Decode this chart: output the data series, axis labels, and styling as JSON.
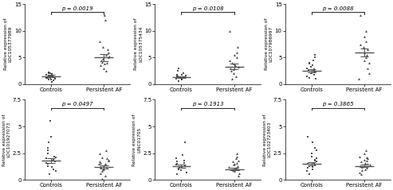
{
  "panels": [
    {
      "ylabel": "Relative expression of\nLOC105377989",
      "pvalue": "p = 0.0019",
      "ylim": [
        0,
        15
      ],
      "yticks": [
        0,
        5,
        10,
        15
      ],
      "controls_mean": 1.5,
      "controls_sem": 0.25,
      "af_mean": 5.0,
      "af_sem": 0.65,
      "controls_dots": [
        0.5,
        0.7,
        0.8,
        0.9,
        1.0,
        1.0,
        1.1,
        1.1,
        1.2,
        1.2,
        1.3,
        1.4,
        1.5,
        1.5,
        1.6,
        1.7,
        1.8,
        1.9,
        2.0,
        2.1,
        2.2
      ],
      "af_dots": [
        2.5,
        3.0,
        3.5,
        3.8,
        4.0,
        4.2,
        4.5,
        4.8,
        5.0,
        5.2,
        5.5,
        6.0,
        6.5,
        7.0,
        8.0,
        12.0,
        13.0
      ]
    },
    {
      "ylabel": "Relative expression of\nLOC105375434",
      "pvalue": "p = 0.0108",
      "ylim": [
        0,
        15
      ],
      "yticks": [
        0,
        5,
        10,
        15
      ],
      "controls_mean": 1.3,
      "controls_sem": 0.2,
      "af_mean": 3.3,
      "af_sem": 0.55,
      "controls_dots": [
        0.6,
        0.8,
        0.9,
        1.0,
        1.1,
        1.2,
        1.3,
        1.4,
        1.5,
        1.6,
        1.7,
        1.8,
        2.0,
        2.5,
        3.0
      ],
      "af_dots": [
        1.0,
        1.5,
        2.0,
        2.5,
        2.8,
        3.0,
        3.2,
        3.5,
        3.8,
        4.0,
        4.5,
        5.0,
        5.5,
        6.0,
        7.0,
        10.0
      ]
    },
    {
      "ylabel": "Relative expression of\nLOC107986997",
      "pvalue": "p = 0.0088",
      "ylim": [
        0,
        15
      ],
      "yticks": [
        0,
        5,
        10,
        15
      ],
      "controls_mean": 2.5,
      "controls_sem": 0.35,
      "af_mean": 6.0,
      "af_sem": 0.75,
      "controls_dots": [
        1.0,
        1.2,
        1.5,
        1.8,
        2.0,
        2.0,
        2.2,
        2.3,
        2.5,
        2.5,
        2.7,
        2.8,
        3.0,
        3.2,
        3.5,
        3.8,
        4.0,
        4.5,
        5.0,
        5.5
      ],
      "af_dots": [
        1.0,
        2.0,
        3.0,
        4.0,
        4.5,
        5.0,
        5.5,
        6.0,
        6.5,
        7.0,
        7.5,
        8.0,
        9.0,
        10.0,
        13.0
      ]
    },
    {
      "ylabel": "Relative expression of\nLOC101927073",
      "pvalue": "p = 0.0497",
      "ylim": [
        0,
        7.5
      ],
      "yticks": [
        0,
        2.5,
        5.0,
        7.5
      ],
      "controls_mean": 1.8,
      "controls_sem": 0.22,
      "af_mean": 1.2,
      "af_sem": 0.12,
      "controls_dots": [
        0.5,
        0.8,
        1.0,
        1.2,
        1.3,
        1.5,
        1.6,
        1.7,
        1.8,
        1.9,
        2.0,
        2.1,
        2.2,
        2.5,
        2.8,
        3.0,
        3.5,
        4.0,
        5.5
      ],
      "af_dots": [
        0.05,
        0.4,
        0.6,
        0.8,
        1.0,
        1.0,
        1.1,
        1.2,
        1.3,
        1.4,
        1.5,
        1.5,
        1.6,
        1.7,
        1.8,
        1.9,
        2.0,
        2.1,
        2.5,
        2.8
      ]
    },
    {
      "ylabel": "Relative expression of\nLINC01705",
      "pvalue": "p = 0.1913",
      "ylim": [
        0,
        7.5
      ],
      "yticks": [
        0,
        2.5,
        5.0,
        7.5
      ],
      "controls_mean": 1.3,
      "controls_sem": 0.15,
      "af_mean": 1.0,
      "af_sem": 0.1,
      "controls_dots": [
        0.5,
        0.7,
        0.9,
        1.0,
        1.1,
        1.2,
        1.3,
        1.4,
        1.5,
        1.6,
        1.7,
        1.8,
        2.0,
        2.3,
        3.5
      ],
      "af_dots": [
        0.4,
        0.6,
        0.8,
        0.9,
        1.0,
        1.0,
        1.1,
        1.2,
        1.3,
        1.4,
        1.5,
        1.6,
        1.7,
        1.8,
        2.0,
        2.2,
        2.5
      ]
    },
    {
      "ylabel": "Relative expression of\nLOC102723403",
      "pvalue": "p = 0.3865",
      "ylim": [
        0,
        7.5
      ],
      "yticks": [
        0,
        2.5,
        5.0,
        7.5
      ],
      "controls_mean": 1.5,
      "controls_sem": 0.15,
      "af_mean": 1.3,
      "af_sem": 0.1,
      "controls_dots": [
        0.5,
        0.8,
        1.0,
        1.1,
        1.2,
        1.3,
        1.4,
        1.5,
        1.6,
        1.7,
        1.8,
        1.9,
        2.0,
        2.2,
        2.5,
        2.8,
        3.0,
        3.5,
        4.0
      ],
      "af_dots": [
        0.5,
        0.7,
        0.9,
        1.0,
        1.1,
        1.2,
        1.3,
        1.4,
        1.5,
        1.6,
        1.7,
        1.8,
        1.9,
        2.0,
        2.1,
        2.2,
        2.5,
        2.8
      ]
    }
  ],
  "dot_color": "#404040",
  "dot_size_sq": 3.5,
  "dot_size_tri": 4.5,
  "dot_alpha": 0.9,
  "line_color": "#555555",
  "bar_width": 0.18,
  "xlim": [
    -0.5,
    1.5
  ],
  "xtick_labels": [
    "Controls",
    "Persistent AF"
  ],
  "figure_bg": "#ffffff",
  "font_size_ylabel": 4.2,
  "font_size_pvalue": 5.0,
  "font_size_tick": 5.0,
  "jitter": 0.1
}
